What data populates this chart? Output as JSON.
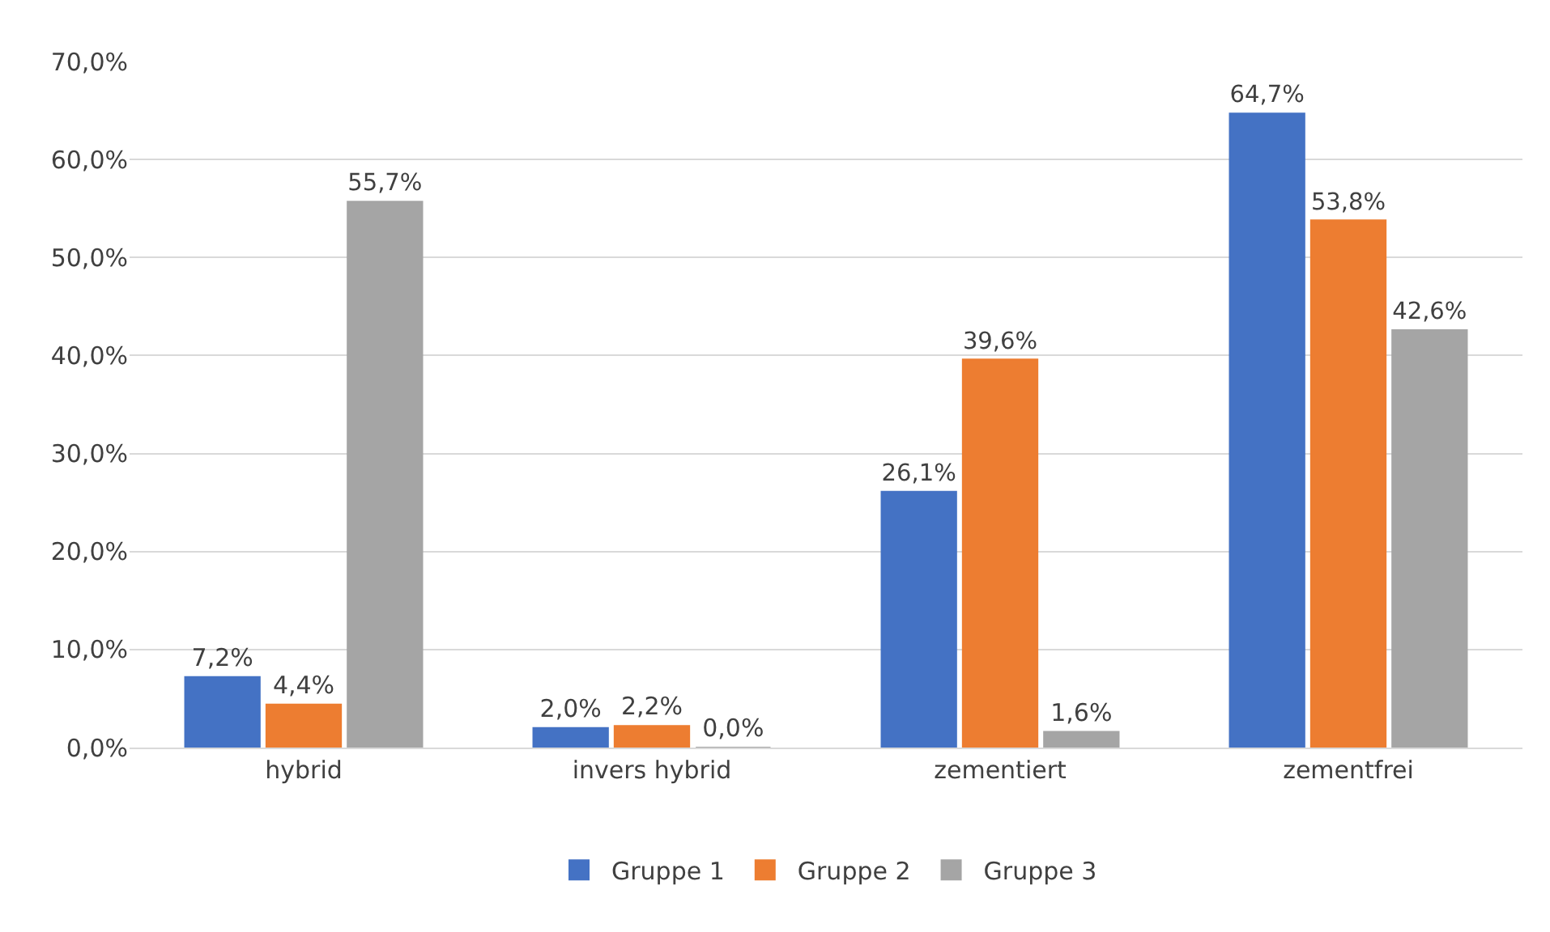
{
  "chart_data": {
    "type": "bar",
    "categories": [
      "hybrid",
      "invers hybrid",
      "zementiert",
      "zementfrei"
    ],
    "series": [
      {
        "name": "Gruppe 1",
        "color": "#4472c4",
        "values": [
          7.2,
          2.0,
          26.1,
          64.7
        ],
        "value_labels": [
          "7,2%",
          "2,0%",
          "26,1%",
          "64,7%"
        ]
      },
      {
        "name": "Gruppe 2",
        "color": "#ed7d31",
        "values": [
          4.4,
          2.2,
          39.6,
          53.8
        ],
        "value_labels": [
          "4,4%",
          "2,2%",
          "39,6%",
          "53,8%"
        ]
      },
      {
        "name": "Gruppe 3",
        "color": "#a5a5a5",
        "values": [
          55.7,
          0.0,
          1.6,
          42.6
        ],
        "value_labels": [
          "55,7%",
          "0,0%",
          "1,6%",
          "42,6%"
        ]
      }
    ],
    "ylim": [
      0,
      70
    ],
    "yticks": [
      {
        "value": 0,
        "label": "0,0%"
      },
      {
        "value": 10,
        "label": "10,0%"
      },
      {
        "value": 20,
        "label": "20,0%"
      },
      {
        "value": 30,
        "label": "30,0%"
      },
      {
        "value": 40,
        "label": "40,0%"
      },
      {
        "value": 50,
        "label": "50,0%"
      },
      {
        "value": 60,
        "label": "60,0%"
      },
      {
        "value": 70,
        "label": "70,0%"
      }
    ],
    "grid": "y",
    "legend": "bottom"
  }
}
